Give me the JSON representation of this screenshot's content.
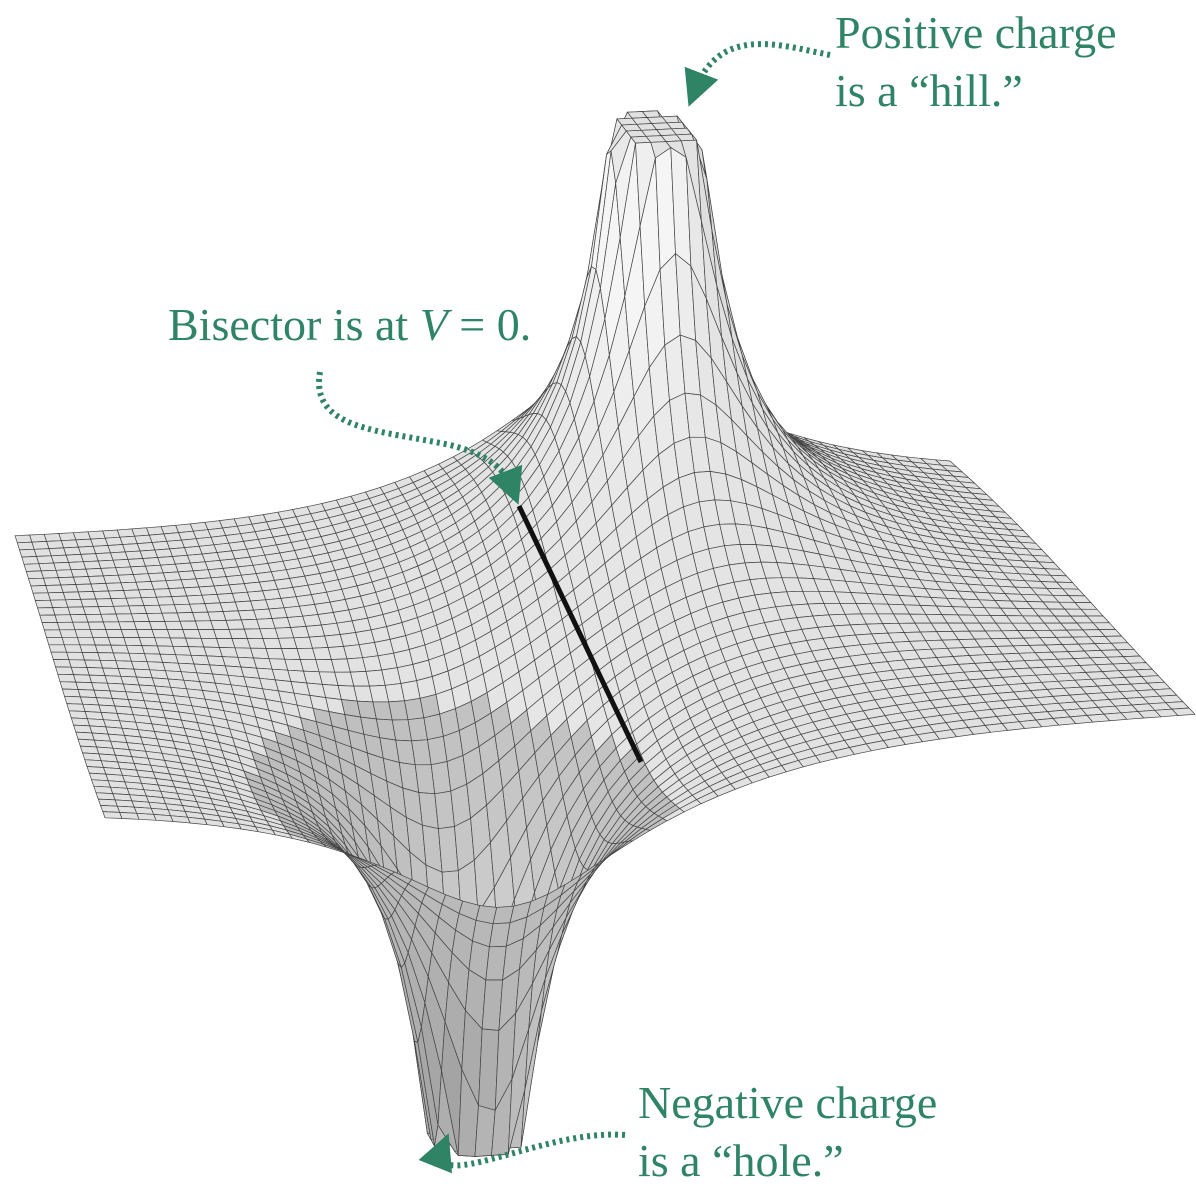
{
  "annotations": [
    {
      "lines": [
        "Positive charge",
        "is a “hill.”"
      ]
    },
    {
      "parts": [
        "Bisector is at ",
        "V",
        " = 0."
      ]
    },
    {
      "lines": [
        "Negative charge",
        "is a “hole.”"
      ]
    }
  ]
}
